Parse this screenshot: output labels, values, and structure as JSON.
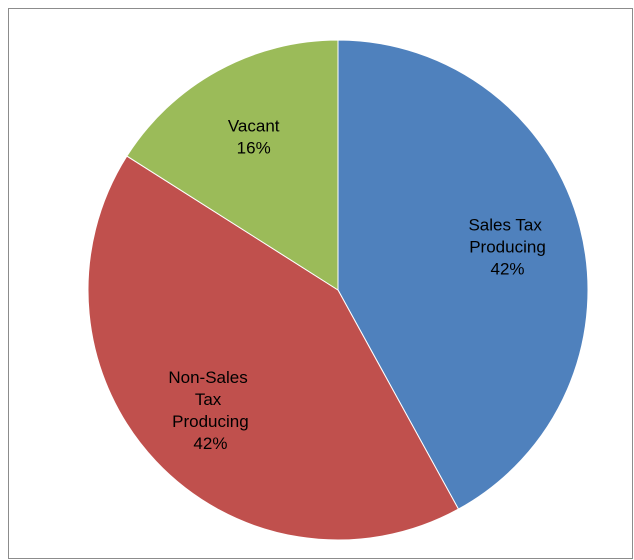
{
  "chart_data": {
    "type": "pie",
    "categories": [
      "Sales Tax Producing",
      "Non-Sales Tax Producing",
      "Vacant"
    ],
    "values": [
      42,
      42,
      16
    ],
    "value_labels": [
      "42%",
      "42%",
      "16%"
    ],
    "colors": [
      "#4f81bd",
      "#c0504d",
      "#9bbb59"
    ]
  }
}
